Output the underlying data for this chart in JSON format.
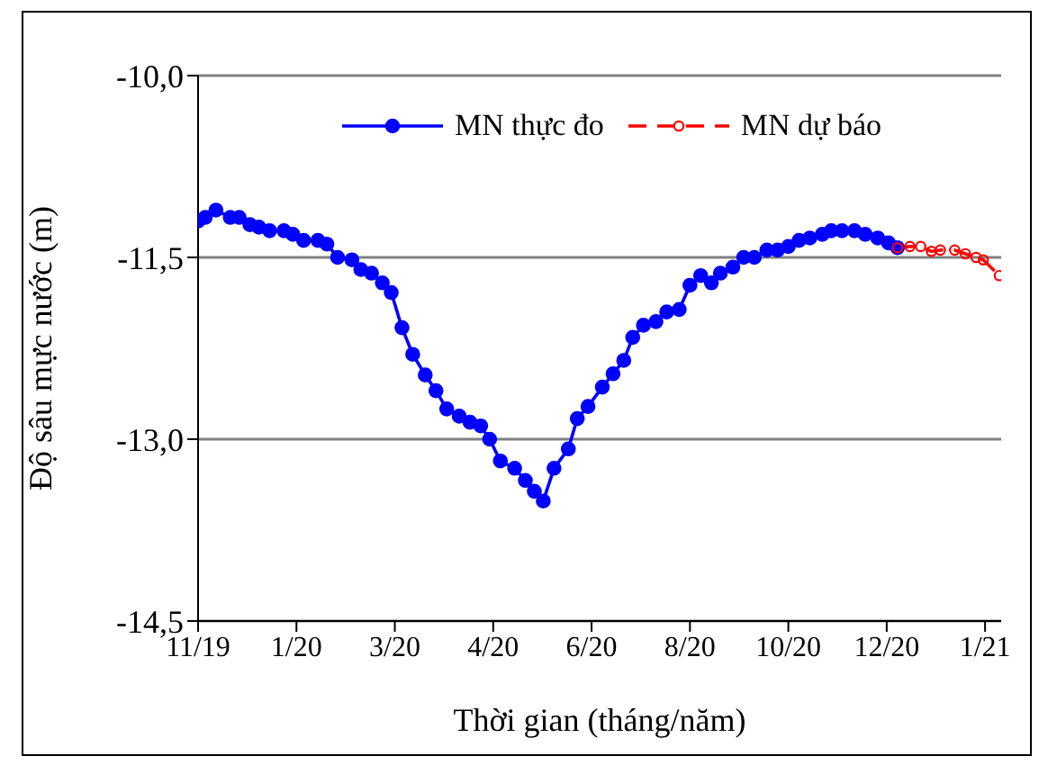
{
  "chart_data": {
    "type": "line",
    "xlabel": "Thời gian  (tháng/năm)",
    "ylabel": "Độ sâu mực nước (m)",
    "xlim": [
      "2019-11-17",
      "2021-02-08"
    ],
    "xticks": [
      {
        "value": "2019-11-17",
        "label": "11/19"
      },
      {
        "value": "2020-01-11",
        "label": "1/20"
      },
      {
        "value": "2020-03-06",
        "label": "3/20"
      },
      {
        "value": "2020-04-30",
        "label": "4/20"
      },
      {
        "value": "2020-06-24",
        "label": "6/20"
      },
      {
        "value": "2020-08-18",
        "label": "8/20"
      },
      {
        "value": "2020-10-12",
        "label": "10/20"
      },
      {
        "value": "2020-12-06",
        "label": "12/20"
      },
      {
        "value": "2021-01-30",
        "label": "1/21"
      }
    ],
    "ylim": [
      -14.5,
      -10
    ],
    "yticks": [
      {
        "value": -14.5,
        "label": "-14,5"
      },
      {
        "value": -13,
        "label": "-13,0"
      },
      {
        "value": -11.5,
        "label": "-11,5"
      },
      {
        "value": -10,
        "label": "-10,0"
      }
    ],
    "grid": "y",
    "legend": "top",
    "series": [
      {
        "name": "MN thực đo",
        "color": "#0000ff",
        "marker": "circle",
        "line_style": "solid",
        "x": [
          "2019-11-17",
          "2019-11-21",
          "2019-11-27",
          "2019-12-05",
          "2019-12-10",
          "2019-12-16",
          "2019-12-21",
          "2019-12-27",
          "2020-01-04",
          "2020-01-09",
          "2020-01-15",
          "2020-01-23",
          "2020-01-28",
          "2020-02-03",
          "2020-02-11",
          "2020-02-16",
          "2020-02-22",
          "2020-02-28",
          "2020-03-04",
          "2020-03-10",
          "2020-03-16",
          "2020-03-23",
          "2020-03-29",
          "2020-04-04",
          "2020-04-11",
          "2020-04-17",
          "2020-04-23",
          "2020-04-28",
          "2020-05-04",
          "2020-05-12",
          "2020-05-18",
          "2020-05-23",
          "2020-05-28",
          "2020-06-03",
          "2020-06-11",
          "2020-06-16",
          "2020-06-22",
          "2020-06-30",
          "2020-07-06",
          "2020-07-12",
          "2020-07-17",
          "2020-07-23",
          "2020-07-30",
          "2020-08-05",
          "2020-08-12",
          "2020-08-18",
          "2020-08-24",
          "2020-08-30",
          "2020-09-04",
          "2020-09-11",
          "2020-09-17",
          "2020-09-23",
          "2020-09-30",
          "2020-10-06",
          "2020-10-12",
          "2020-10-18",
          "2020-10-24",
          "2020-10-31",
          "2020-11-05",
          "2020-11-11",
          "2020-11-18",
          "2020-11-24",
          "2020-12-01",
          "2020-12-07",
          "2020-12-12"
        ],
        "values": [
          -11.2,
          -11.17,
          -11.11,
          -11.17,
          -11.17,
          -11.23,
          -11.25,
          -11.28,
          -11.28,
          -11.31,
          -11.36,
          -11.36,
          -11.39,
          -11.5,
          -11.52,
          -11.6,
          -11.63,
          -11.71,
          -11.79,
          -12.08,
          -12.3,
          -12.47,
          -12.6,
          -12.75,
          -12.81,
          -12.86,
          -12.89,
          -13.0,
          -13.18,
          -13.24,
          -13.34,
          -13.43,
          -13.51,
          -13.24,
          -13.08,
          -12.83,
          -12.73,
          -12.57,
          -12.46,
          -12.35,
          -12.16,
          -12.06,
          -12.03,
          -11.95,
          -11.93,
          -11.73,
          -11.65,
          -11.71,
          -11.63,
          -11.58,
          -11.5,
          -11.5,
          -11.44,
          -11.44,
          -11.41,
          -11.36,
          -11.34,
          -11.31,
          -11.28,
          -11.28,
          -11.28,
          -11.31,
          -11.34,
          -11.38,
          -11.42
        ]
      },
      {
        "name": "MN dự báo",
        "color": "#ff0000",
        "marker": "circle",
        "line_style": "dashed",
        "x": [
          "2020-12-12",
          "2020-12-19",
          "2020-12-25",
          "2020-12-31",
          "2021-01-05",
          "2021-01-13",
          "2021-01-19",
          "2021-01-25",
          "2021-01-29",
          "2021-02-07"
        ],
        "values": [
          -11.42,
          -11.41,
          -11.41,
          -11.45,
          -11.44,
          -11.44,
          -11.47,
          -11.5,
          -11.52,
          -11.65
        ]
      }
    ]
  }
}
